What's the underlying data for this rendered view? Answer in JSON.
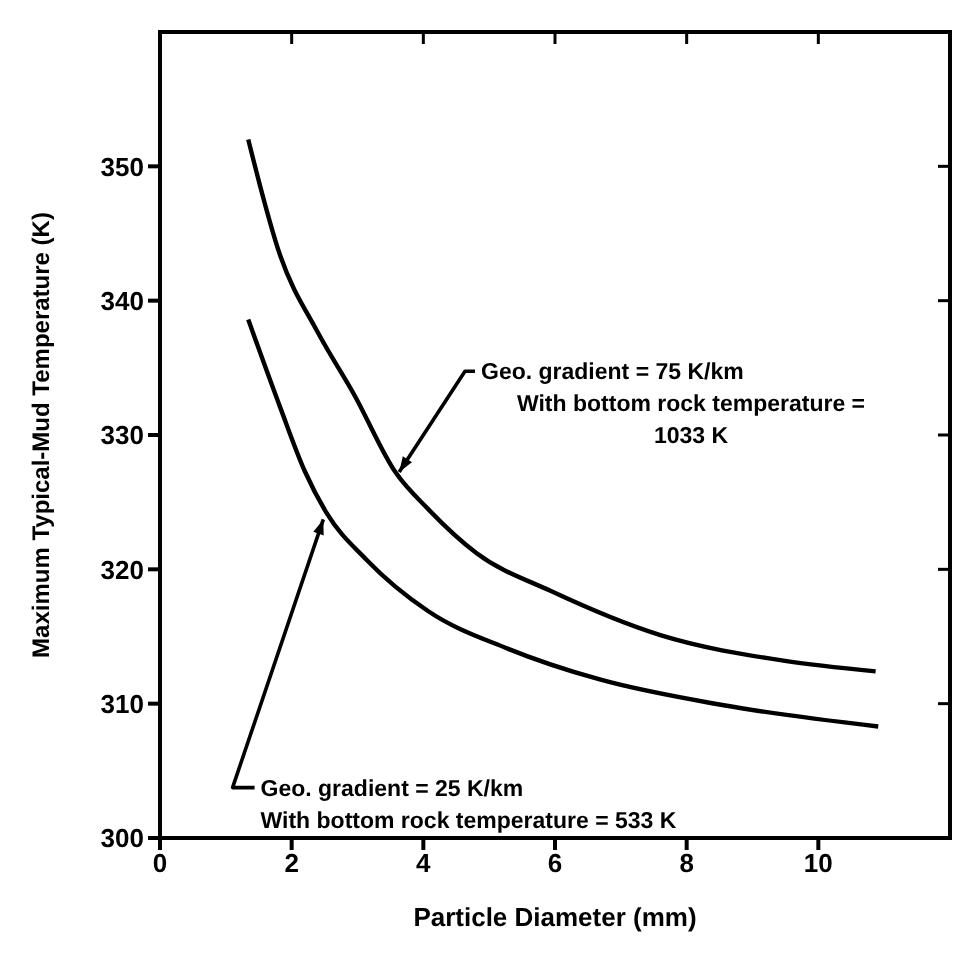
{
  "chart_data": {
    "type": "line",
    "xlabel": "Particle Diameter (mm)",
    "ylabel": "Maximum Typical-Mud Temperature (K)",
    "xlim": [
      0,
      12
    ],
    "xticks": [
      0,
      2,
      4,
      6,
      8,
      10
    ],
    "ylim": [
      300,
      360
    ],
    "yticks": [
      300,
      310,
      320,
      330,
      340,
      350
    ],
    "grid": false,
    "marker": "none",
    "line_style": "solid",
    "series": [
      {
        "color": "#000000",
        "x": [
          1.34,
          1.83,
          2.39,
          2.95,
          3.58,
          4.07,
          4.81,
          5.93,
          7.6,
          9.47,
          10.87
        ],
        "values": [
          352.0,
          343.3,
          337.7,
          333.0,
          327.2,
          324.5,
          321.2,
          318.4,
          315.1,
          313.2,
          312.4
        ]
      },
      {
        "color": "#000000",
        "x": [
          1.34,
          1.83,
          2.2,
          2.53,
          3.14,
          4.07,
          5.28,
          6.68,
          8.54,
          10.91
        ],
        "values": [
          338.6,
          332.0,
          327.3,
          324.2,
          320.7,
          316.9,
          314.1,
          311.8,
          309.9,
          308.3
        ]
      }
    ],
    "annotations": [
      {
        "text": "Geo. gradient = 75 K/km\nWith bottom rock temperature =\n1033 K",
        "x": 3.6,
        "y": 327
      },
      {
        "text": "Geo. gradient = 25 K/km\nWith bottom rock temperature = 533 K",
        "x": 2.5,
        "y": 324
      }
    ]
  }
}
